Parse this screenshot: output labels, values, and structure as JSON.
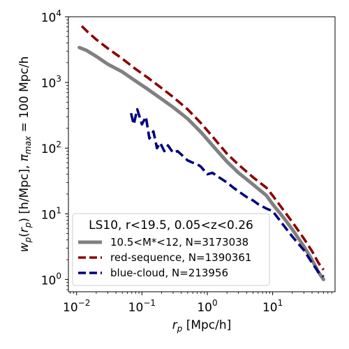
{
  "chart_data": {
    "type": "line",
    "xscale": "log",
    "yscale": "log",
    "xlim": [
      0.0075,
      90
    ],
    "ylim": [
      0.65,
      10000
    ],
    "xticks": [
      {
        "value": 0.01,
        "base": "10",
        "exp": "−2"
      },
      {
        "value": 0.1,
        "base": "10",
        "exp": "−1"
      },
      {
        "value": 1,
        "base": "10",
        "exp": "0"
      },
      {
        "value": 10,
        "base": "10",
        "exp": "1"
      }
    ],
    "yticks": [
      {
        "value": 1,
        "base": "10",
        "exp": "0"
      },
      {
        "value": 10,
        "base": "10",
        "exp": "1"
      },
      {
        "value": 100,
        "base": "10",
        "exp": "2"
      },
      {
        "value": 1000,
        "base": "10",
        "exp": "3"
      },
      {
        "value": 10000,
        "base": "10",
        "exp": "4"
      }
    ],
    "xlabel": "r_p [Mpc/h]",
    "ylabel": "w_p(r_p) [h/Mpc], π_max = 100 Mpc/h",
    "legend": {
      "title": "LS10, r<19.5, 0.05<z<0.26",
      "placement": "lower left"
    },
    "series": [
      {
        "name": "10.5<M*<12, N=3173038",
        "color": "#808080",
        "style": "solid",
        "x": [
          0.011,
          0.014,
          0.02,
          0.03,
          0.05,
          0.08,
          0.12,
          0.2,
          0.3,
          0.5,
          0.8,
          1.2,
          2,
          3,
          5,
          8,
          10,
          15,
          20,
          30,
          40,
          50,
          60
        ],
        "y": [
          3400,
          3100,
          2500,
          1900,
          1450,
          1050,
          800,
          560,
          420,
          280,
          175,
          110,
          62,
          42,
          28,
          19,
          14,
          8.5,
          5.8,
          3.2,
          2.0,
          1.3,
          1.0
        ]
      },
      {
        "name": "red-sequence, N=1390361",
        "color": "#8b0000",
        "style": "dashed",
        "x": [
          0.012,
          0.015,
          0.02,
          0.03,
          0.05,
          0.08,
          0.12,
          0.2,
          0.3,
          0.5,
          0.8,
          1.2,
          2,
          3,
          5,
          8,
          10,
          15,
          20,
          30,
          40,
          50,
          60
        ],
        "y": [
          7200,
          5800,
          4500,
          3300,
          2300,
          1600,
          1200,
          820,
          600,
          390,
          240,
          150,
          82,
          56,
          36,
          25,
          19,
          11,
          7.5,
          4.2,
          2.7,
          1.8,
          1.4
        ]
      },
      {
        "name": "blue-cloud, N=213956",
        "color": "#00007f",
        "style": "dashed",
        "x": [
          0.068,
          0.075,
          0.085,
          0.1,
          0.115,
          0.13,
          0.15,
          0.17,
          0.19,
          0.22,
          0.25,
          0.3,
          0.35,
          0.4,
          0.5,
          0.6,
          0.7,
          0.8,
          1.0,
          1.2,
          1.5,
          2,
          2.5,
          3,
          4,
          5,
          6,
          8,
          10,
          15,
          20,
          30,
          40,
          50,
          60
        ],
        "y": [
          340,
          230,
          390,
          230,
          300,
          140,
          180,
          100,
          120,
          90,
          110,
          85,
          90,
          80,
          65,
          60,
          57,
          52,
          40,
          42,
          36,
          30,
          25,
          22,
          18,
          16,
          14,
          12,
          11,
          6.5,
          4.5,
          2.8,
          1.8,
          1.3,
          1.1
        ]
      }
    ]
  }
}
